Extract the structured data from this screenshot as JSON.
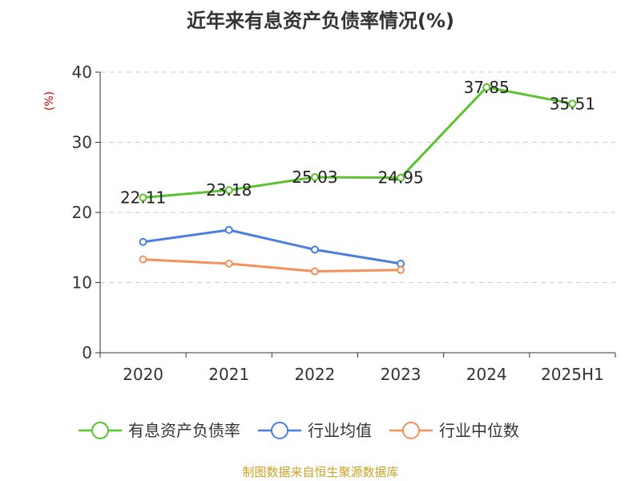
{
  "colors": {
    "debt_ratio": "#5bc22f",
    "industry_avg": "#4a7fdb",
    "industry_median": "#f5905b",
    "axis": "#333333",
    "grid": "#cccccc",
    "unit": "#cc0000",
    "source": "#c9a227"
  },
  "chart_data": {
    "type": "line",
    "title": "近年来有息资产负债率情况(%)",
    "ylabel": "(%)",
    "xlabel": "",
    "categories": [
      "2020",
      "2021",
      "2022",
      "2023",
      "2024",
      "2025H1"
    ],
    "ylim": [
      0,
      40
    ],
    "yticks": [
      0,
      10,
      20,
      30,
      40
    ],
    "grid": "horizontal-dashed",
    "legend_position": "bottom",
    "series": [
      {
        "name": "有息资产负债率",
        "color_key": "debt_ratio",
        "values": [
          22.11,
          23.18,
          25.03,
          24.95,
          37.85,
          35.51
        ],
        "labels": [
          "22.11",
          "23.18",
          "25.03",
          "24.95",
          "37.85",
          "35.51"
        ]
      },
      {
        "name": "行业均值",
        "color_key": "industry_avg",
        "values": [
          15.8,
          17.5,
          14.7,
          12.7,
          null,
          null
        ]
      },
      {
        "name": "行业中位数",
        "color_key": "industry_median",
        "values": [
          13.3,
          12.7,
          11.6,
          11.8,
          null,
          null
        ]
      }
    ]
  },
  "footer": {
    "source": "制图数据来自恒生聚源数据库"
  }
}
